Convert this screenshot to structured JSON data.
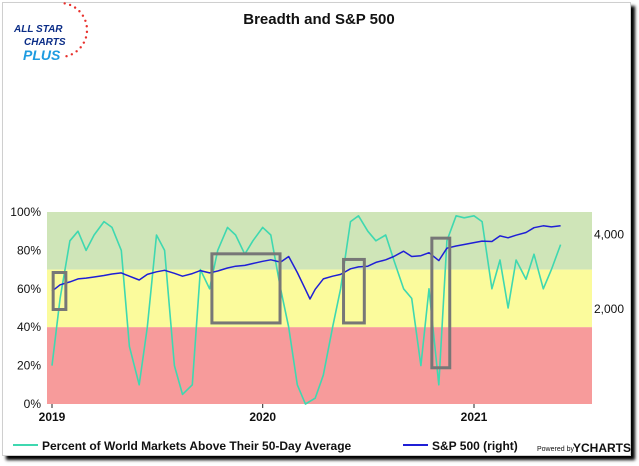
{
  "logo": {
    "line1": "ALL STAR",
    "line2": "CHARTS",
    "line3": "PLUS",
    "colors": {
      "primary": "#0b2d87",
      "accent": "#e8312d",
      "plus": "#1d9be0"
    }
  },
  "credit": {
    "powered_by": "Powered by",
    "brand": "YCHARTS"
  },
  "colors": {
    "sp500_line": "#1f1fd6",
    "breadth_line": "#3fd8b0",
    "zone_green": "#cfe5b8",
    "zone_yellow": "#fbfb9c",
    "zone_red": "#f79b9b",
    "highlight_box": "#777777"
  },
  "chart_data": {
    "type": "line",
    "title": "Breadth and S&P 500",
    "x_ticks": [
      "2019",
      "2020",
      "2021"
    ],
    "x_range": [
      "2019-01-01",
      "2021-06-30"
    ],
    "left_axis": {
      "ticks": [
        "100%",
        "80%",
        "60%",
        "40%",
        "20%",
        "0%"
      ],
      "range": [
        0,
        100
      ],
      "zones": [
        {
          "from": 70,
          "to": 100,
          "color": "green"
        },
        {
          "from": 40,
          "to": 70,
          "color": "yellow"
        },
        {
          "from": 0,
          "to": 40,
          "color": "red"
        }
      ]
    },
    "right_axis": {
      "ticks": [
        "4,000",
        "2,000"
      ],
      "range": [
        -570,
        4570
      ]
    },
    "legend": {
      "position": "bottom"
    },
    "series": [
      {
        "name": "Percent of World Markets Above Their 50-Day Average",
        "axis": "left",
        "points": [
          [
            "2019-01-01",
            20
          ],
          [
            "2019-01-15",
            55
          ],
          [
            "2019-02-01",
            85
          ],
          [
            "2019-02-15",
            90
          ],
          [
            "2019-03-01",
            80
          ],
          [
            "2019-03-15",
            88
          ],
          [
            "2019-04-01",
            95
          ],
          [
            "2019-04-15",
            92
          ],
          [
            "2019-05-01",
            80
          ],
          [
            "2019-05-15",
            30
          ],
          [
            "2019-06-01",
            10
          ],
          [
            "2019-06-15",
            40
          ],
          [
            "2019-07-01",
            88
          ],
          [
            "2019-07-15",
            80
          ],
          [
            "2019-08-01",
            20
          ],
          [
            "2019-08-15",
            5
          ],
          [
            "2019-09-01",
            10
          ],
          [
            "2019-09-15",
            70
          ],
          [
            "2019-10-01",
            60
          ],
          [
            "2019-10-15",
            80
          ],
          [
            "2019-11-01",
            92
          ],
          [
            "2019-11-15",
            88
          ],
          [
            "2019-12-01",
            78
          ],
          [
            "2019-12-15",
            85
          ],
          [
            "2020-01-01",
            92
          ],
          [
            "2020-01-15",
            88
          ],
          [
            "2020-02-01",
            60
          ],
          [
            "2020-02-15",
            40
          ],
          [
            "2020-03-01",
            10
          ],
          [
            "2020-03-15",
            0
          ],
          [
            "2020-04-01",
            3
          ],
          [
            "2020-04-15",
            15
          ],
          [
            "2020-05-01",
            40
          ],
          [
            "2020-05-15",
            60
          ],
          [
            "2020-06-01",
            95
          ],
          [
            "2020-06-15",
            98
          ],
          [
            "2020-07-01",
            90
          ],
          [
            "2020-07-15",
            85
          ],
          [
            "2020-08-01",
            88
          ],
          [
            "2020-08-15",
            75
          ],
          [
            "2020-09-01",
            60
          ],
          [
            "2020-09-15",
            55
          ],
          [
            "2020-10-01",
            20
          ],
          [
            "2020-10-15",
            60
          ],
          [
            "2020-11-01",
            10
          ],
          [
            "2020-11-15",
            85
          ],
          [
            "2020-12-01",
            98
          ],
          [
            "2020-12-15",
            97
          ],
          [
            "2021-01-01",
            98
          ],
          [
            "2021-01-15",
            95
          ],
          [
            "2021-02-01",
            60
          ],
          [
            "2021-02-15",
            75
          ],
          [
            "2021-03-01",
            50
          ],
          [
            "2021-03-15",
            75
          ],
          [
            "2021-04-01",
            65
          ],
          [
            "2021-04-15",
            78
          ],
          [
            "2021-05-01",
            60
          ],
          [
            "2021-05-15",
            70
          ],
          [
            "2021-05-31",
            83
          ]
        ]
      },
      {
        "name": "S&P 500 (right)",
        "axis": "right",
        "points": [
          [
            "2019-01-01",
            2450
          ],
          [
            "2019-01-15",
            2620
          ],
          [
            "2019-02-01",
            2700
          ],
          [
            "2019-02-15",
            2780
          ],
          [
            "2019-03-01",
            2800
          ],
          [
            "2019-03-15",
            2830
          ],
          [
            "2019-04-01",
            2870
          ],
          [
            "2019-04-15",
            2910
          ],
          [
            "2019-05-01",
            2940
          ],
          [
            "2019-05-15",
            2850
          ],
          [
            "2019-06-01",
            2750
          ],
          [
            "2019-06-15",
            2900
          ],
          [
            "2019-07-01",
            2970
          ],
          [
            "2019-07-15",
            3010
          ],
          [
            "2019-08-01",
            2930
          ],
          [
            "2019-08-15",
            2850
          ],
          [
            "2019-09-01",
            2920
          ],
          [
            "2019-09-15",
            3000
          ],
          [
            "2019-10-01",
            2940
          ],
          [
            "2019-10-15",
            2990
          ],
          [
            "2019-11-01",
            3070
          ],
          [
            "2019-11-15",
            3120
          ],
          [
            "2019-12-01",
            3140
          ],
          [
            "2019-12-15",
            3190
          ],
          [
            "2020-01-01",
            3250
          ],
          [
            "2020-01-15",
            3290
          ],
          [
            "2020-02-01",
            3230
          ],
          [
            "2020-02-15",
            3380
          ],
          [
            "2020-03-01",
            2950
          ],
          [
            "2020-03-15",
            2500
          ],
          [
            "2020-03-23",
            2240
          ],
          [
            "2020-04-01",
            2500
          ],
          [
            "2020-04-15",
            2780
          ],
          [
            "2020-05-01",
            2850
          ],
          [
            "2020-05-15",
            2900
          ],
          [
            "2020-06-01",
            3050
          ],
          [
            "2020-06-15",
            3100
          ],
          [
            "2020-07-01",
            3120
          ],
          [
            "2020-07-15",
            3220
          ],
          [
            "2020-08-01",
            3290
          ],
          [
            "2020-08-15",
            3380
          ],
          [
            "2020-09-01",
            3520
          ],
          [
            "2020-09-15",
            3380
          ],
          [
            "2020-10-01",
            3400
          ],
          [
            "2020-10-15",
            3480
          ],
          [
            "2020-11-01",
            3270
          ],
          [
            "2020-11-15",
            3600
          ],
          [
            "2020-12-01",
            3660
          ],
          [
            "2020-12-15",
            3700
          ],
          [
            "2021-01-01",
            3750
          ],
          [
            "2021-01-15",
            3790
          ],
          [
            "2021-02-01",
            3780
          ],
          [
            "2021-02-15",
            3930
          ],
          [
            "2021-03-01",
            3880
          ],
          [
            "2021-03-15",
            3950
          ],
          [
            "2021-04-01",
            4020
          ],
          [
            "2021-04-15",
            4150
          ],
          [
            "2021-05-01",
            4200
          ],
          [
            "2021-05-15",
            4170
          ],
          [
            "2021-05-31",
            4200
          ]
        ]
      }
    ],
    "annotations": [
      {
        "type": "box",
        "x": [
          "2019-01-03",
          "2019-01-25"
        ],
        "y": [
          1960,
          2950
        ]
      },
      {
        "type": "box",
        "x": [
          "2019-10-05",
          "2020-01-31"
        ],
        "y": [
          1600,
          3450
        ]
      },
      {
        "type": "box",
        "x": [
          "2020-05-20",
          "2020-06-25"
        ],
        "y": [
          1600,
          3300
        ]
      },
      {
        "type": "box",
        "x": [
          "2020-10-20",
          "2020-11-20"
        ],
        "y": [
          400,
          3870
        ]
      }
    ]
  }
}
